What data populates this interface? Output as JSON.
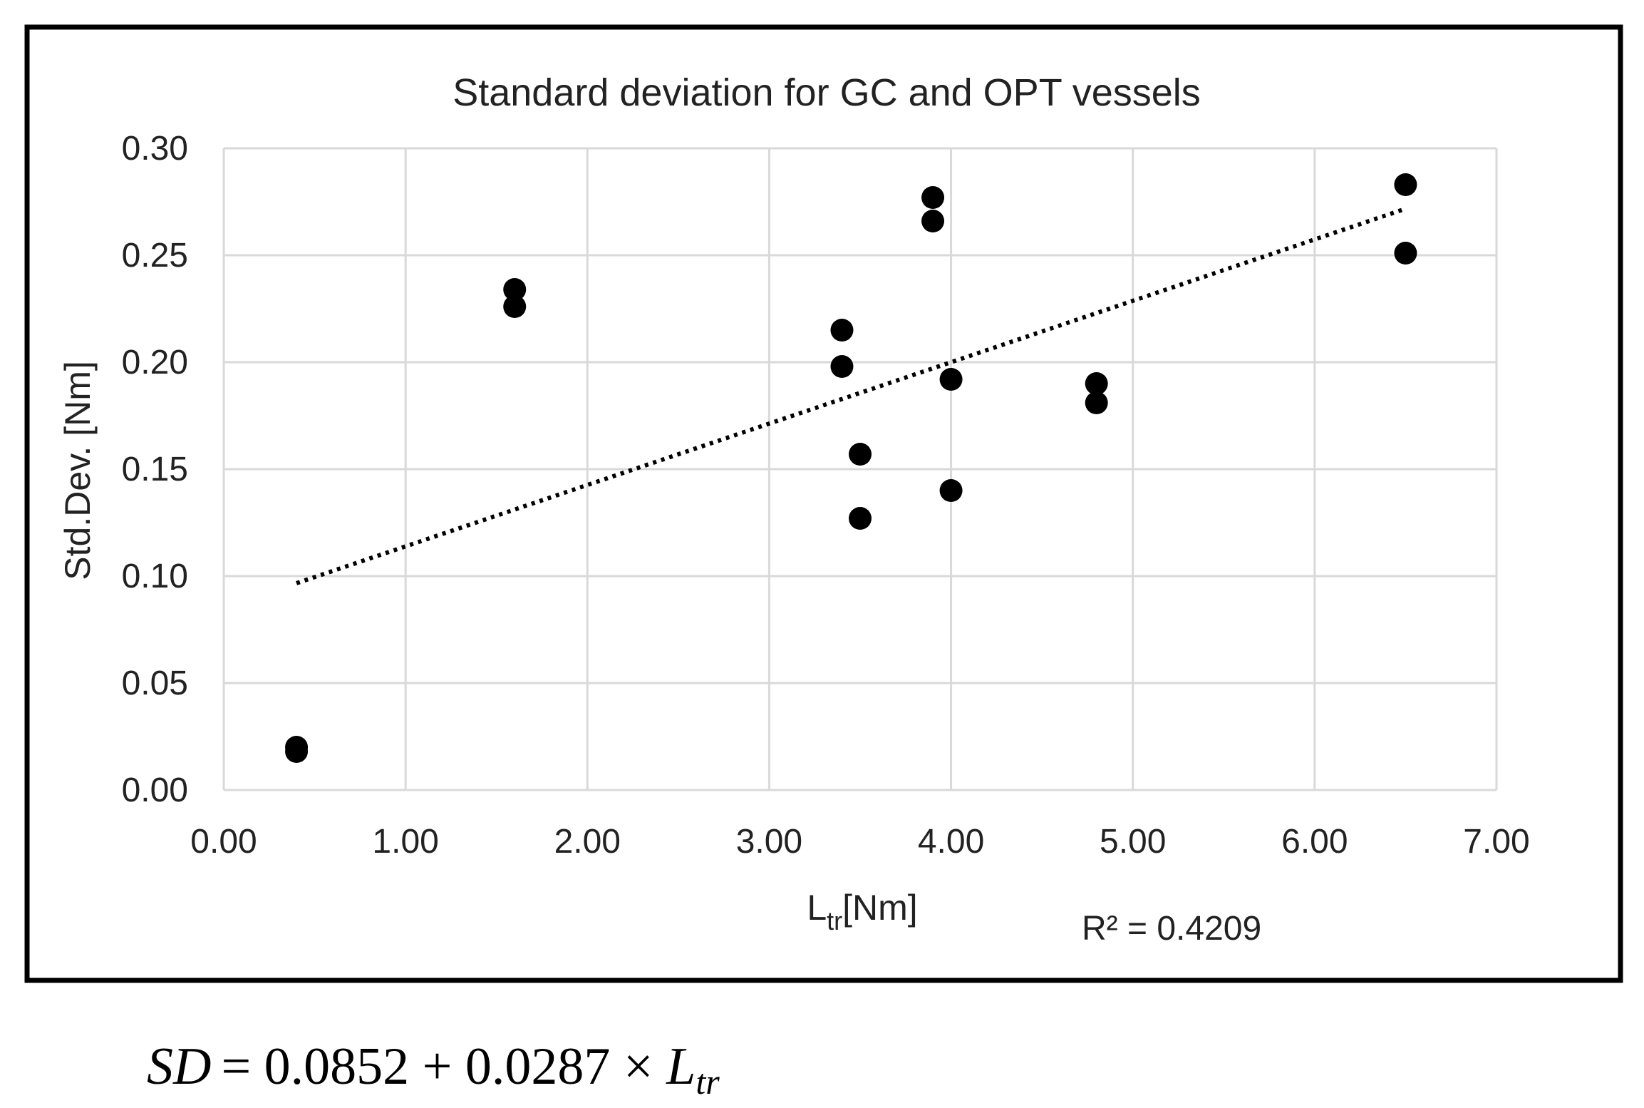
{
  "chart_data": {
    "type": "scatter",
    "title": "Standard deviation  for GC and OPT  vessels",
    "xlabel": {
      "main": "L",
      "sub": "tr",
      "unit": "[Nm]"
    },
    "ylabel": "Std.Dev. [Nm]",
    "xlim": [
      0,
      7
    ],
    "ylim": [
      0,
      0.3
    ],
    "x_ticks": [
      0,
      1,
      2,
      3,
      4,
      5,
      6,
      7
    ],
    "y_ticks": [
      0,
      0.05,
      0.1,
      0.15,
      0.2,
      0.25,
      0.3
    ],
    "x_tick_labels": [
      "0.00",
      "1.00",
      "2.00",
      "3.00",
      "4.00",
      "5.00",
      "6.00",
      "7.00"
    ],
    "y_tick_labels": [
      "0.00",
      "0.05",
      "0.10",
      "0.15",
      "0.20",
      "0.25",
      "0.30"
    ],
    "grid": true,
    "series": [
      {
        "name": "Std.Dev.",
        "color": "#000000",
        "points": [
          {
            "x": 0.4,
            "y": 0.02
          },
          {
            "x": 0.4,
            "y": 0.018
          },
          {
            "x": 1.6,
            "y": 0.234
          },
          {
            "x": 1.6,
            "y": 0.226
          },
          {
            "x": 3.4,
            "y": 0.215
          },
          {
            "x": 3.4,
            "y": 0.198
          },
          {
            "x": 3.5,
            "y": 0.157
          },
          {
            "x": 3.5,
            "y": 0.127
          },
          {
            "x": 3.9,
            "y": 0.277
          },
          {
            "x": 3.9,
            "y": 0.266
          },
          {
            "x": 4.0,
            "y": 0.192
          },
          {
            "x": 4.0,
            "y": 0.14
          },
          {
            "x": 4.8,
            "y": 0.19
          },
          {
            "x": 4.8,
            "y": 0.181
          },
          {
            "x": 6.5,
            "y": 0.283
          },
          {
            "x": 6.5,
            "y": 0.251
          }
        ]
      }
    ],
    "trendline": {
      "type": "linear",
      "style": "dotted",
      "color": "#000000",
      "intercept": 0.0852,
      "slope": 0.0287,
      "x_range": [
        0.4,
        6.5
      ],
      "r_squared_label": "R² = 0.4209"
    },
    "equation": {
      "lhs": "SD",
      "rhs_prefix": "= 0.0852 + 0.0287 × ",
      "var_main": "L",
      "var_sub": "tr"
    }
  },
  "colors": {
    "frame": "#000000",
    "grid": "#d9d9d9",
    "text": "#222222",
    "marker": "#000000",
    "background": "#ffffff"
  }
}
